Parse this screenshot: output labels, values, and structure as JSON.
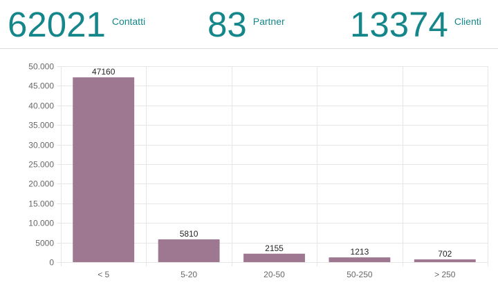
{
  "kpis": [
    {
      "value": "62021",
      "label": "Contatti"
    },
    {
      "value": "83",
      "label": "Partner"
    },
    {
      "value": "13374",
      "label": "Clienti"
    }
  ],
  "colors": {
    "kpi": "#15868a",
    "bar": "#9e7890",
    "grid": "#e6e6e6",
    "axis_text": "#666666",
    "data_label": "#222222"
  },
  "chart_data": {
    "type": "bar",
    "title": "",
    "xlabel": "",
    "ylabel": "",
    "categories": [
      "< 5",
      "5-20",
      "20-50",
      "50-250",
      "> 250"
    ],
    "values": [
      47160,
      5810,
      2155,
      1213,
      702
    ],
    "data_labels": [
      "47160",
      "5810",
      "2155",
      "1213",
      "702"
    ],
    "ylim": [
      0,
      50000
    ],
    "yticks": [
      0,
      5000,
      10000,
      15000,
      20000,
      25000,
      30000,
      35000,
      40000,
      45000,
      50000
    ],
    "ytick_labels": [
      "0",
      "5000",
      "10.000",
      "15.000",
      "20.000",
      "25.000",
      "30.000",
      "35.000",
      "40.000",
      "45.000",
      "50.000"
    ],
    "grid": true,
    "legend": "none"
  }
}
